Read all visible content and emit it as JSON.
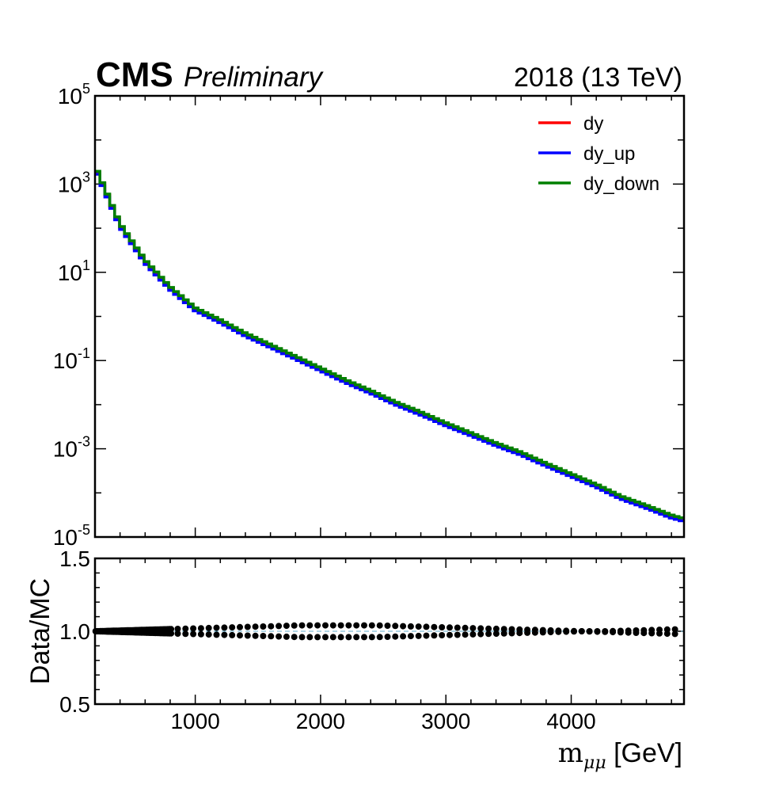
{
  "header": {
    "experiment": "CMS",
    "status": "Preliminary",
    "lumi": "2018 (13 TeV)"
  },
  "chart_data": [
    {
      "type": "line",
      "name": "main-panel",
      "yscale": "log",
      "xlim": [
        200,
        4900
      ],
      "ylim": [
        1e-05,
        100000
      ],
      "ytick_labels": [
        {
          "base": "10",
          "exp": "5"
        },
        {
          "base": "10",
          "exp": "3"
        },
        {
          "base": "10",
          "exp": "1"
        },
        {
          "base": "10",
          "exp": "-1"
        },
        {
          "base": "10",
          "exp": "-3"
        },
        {
          "base": "10",
          "exp": "-5"
        }
      ],
      "legend": {
        "placement": "top-right",
        "entries": [
          "dy",
          "dy_up",
          "dy_down"
        ]
      },
      "series": [
        {
          "name": "dy",
          "color": "#ff0000",
          "draw_order": 0
        },
        {
          "name": "dy_up",
          "color": "#0000ff",
          "draw_order": 1,
          "scale": 0.9
        },
        {
          "name": "dy_down",
          "color": "#008000",
          "draw_order": 2,
          "scale": 1.05
        }
      ],
      "x": [
        200,
        400,
        600,
        800,
        1000,
        1200,
        1400,
        1600,
        1800,
        2000,
        2200,
        2400,
        2600,
        2800,
        3000,
        3200,
        3400,
        3600,
        3800,
        4000,
        4200,
        4400,
        4600,
        4800,
        4900
      ],
      "values": [
        2500,
        120,
        18,
        4.5,
        1.5,
        0.8,
        0.4,
        0.22,
        0.12,
        0.065,
        0.035,
        0.02,
        0.011,
        0.0065,
        0.0037,
        0.0022,
        0.0013,
        0.0008,
        0.00045,
        0.00026,
        0.00015,
        8e-05,
        5e-05,
        3e-05,
        2.5e-05
      ]
    },
    {
      "type": "scatter",
      "name": "ratio-panel",
      "ylabel": "Data/MC",
      "xlabel": "m",
      "xlabel_sub": "μμ",
      "xlabel_unit": "[GeV]",
      "xlim": [
        200,
        4900
      ],
      "ylim": [
        0.5,
        1.5
      ],
      "yticks": [
        "1.5",
        "1.0",
        "0.5"
      ],
      "xticks": [
        "1000",
        "2000",
        "3000",
        "4000"
      ],
      "reference_line": 1.0,
      "series": [
        {
          "name": "up-ratio",
          "y": [
            1.0,
            1.005,
            1.01,
            1.015,
            1.02,
            1.025,
            1.03,
            1.035,
            1.04,
            1.04,
            1.04,
            1.04,
            1.035,
            1.03,
            1.025,
            1.02,
            1.015,
            1.01,
            1.005,
            1.0,
            1.0,
            1.005,
            1.01,
            1.015
          ]
        },
        {
          "name": "down-ratio",
          "y": [
            1.0,
            0.995,
            0.99,
            0.985,
            0.98,
            0.975,
            0.97,
            0.965,
            0.96,
            0.96,
            0.96,
            0.96,
            0.965,
            0.97,
            0.975,
            0.98,
            0.985,
            0.99,
            0.995,
            1.0,
            0.995,
            0.99,
            0.985,
            0.98
          ]
        }
      ]
    }
  ]
}
